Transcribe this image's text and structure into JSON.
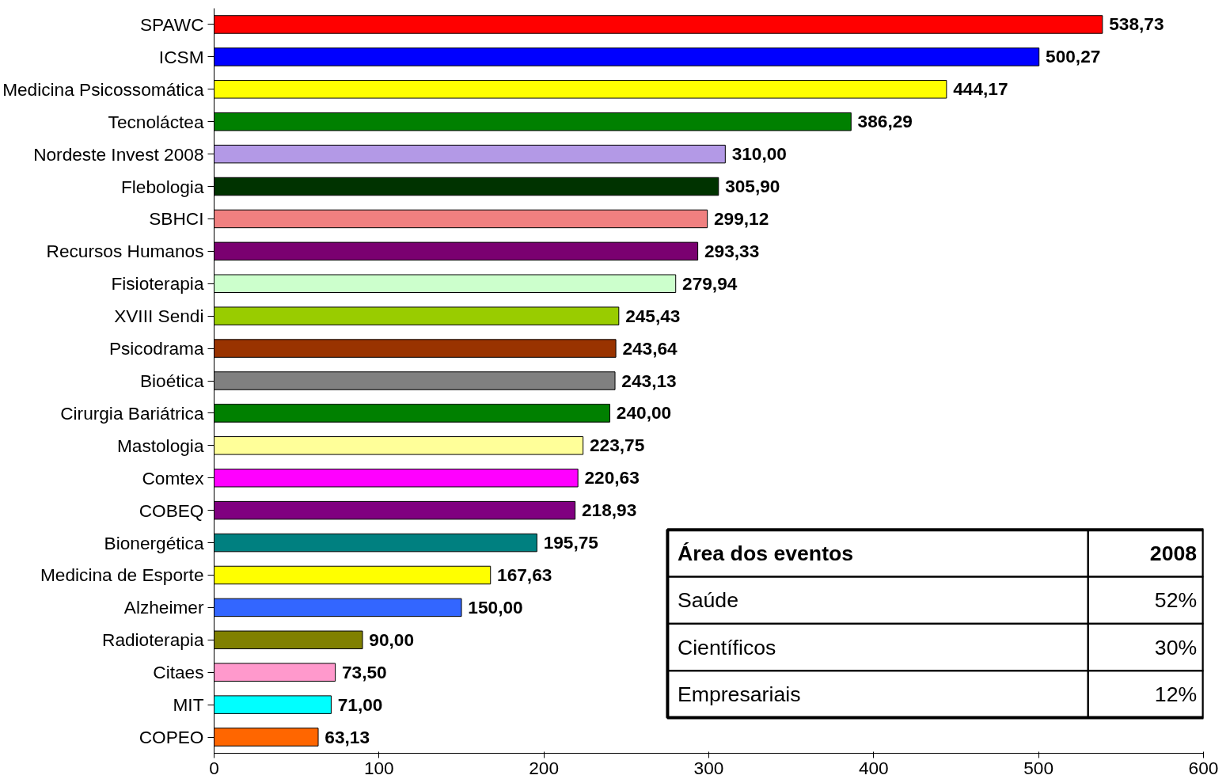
{
  "chart_data": {
    "type": "bar",
    "orientation": "horizontal",
    "categories": [
      "SPAWC",
      "ICSM",
      "Medicina Psicossomática",
      "Tecnoláctea",
      "Nordeste Invest 2008",
      "Flebologia",
      "SBHCI",
      "Recursos Humanos",
      "Fisioterapia",
      "XVIII Sendi",
      "Psicodrama",
      "Bioética",
      "Cirurgia Bariátrica",
      "Mastologia",
      "Comtex",
      "COBEQ",
      "Bionergética",
      "Medicina de Esporte",
      "Alzheimer",
      "Radioterapia",
      "Citaes",
      "MIT",
      "COPEO"
    ],
    "values": [
      538.73,
      500.27,
      444.17,
      386.29,
      310.0,
      305.9,
      299.12,
      293.33,
      279.94,
      245.43,
      243.64,
      243.13,
      240.0,
      223.75,
      220.63,
      218.93,
      195.75,
      167.63,
      150.0,
      90.0,
      73.5,
      71.0,
      63.13
    ],
    "value_labels": [
      "538,73",
      "500,27",
      "444,17",
      "386,29",
      "310,00",
      "305,90",
      "299,12",
      "293,33",
      "279,94",
      "245,43",
      "243,64",
      "243,13",
      "240,00",
      "223,75",
      "220,63",
      "218,93",
      "195,75",
      "167,63",
      "150,00",
      "90,00",
      "73,50",
      "71,00",
      "63,13"
    ],
    "colors": [
      "#ff0000",
      "#0000ff",
      "#ffff00",
      "#008000",
      "#b399e6",
      "#003300",
      "#f08080",
      "#7a0070",
      "#ccffcc",
      "#99cc00",
      "#993300",
      "#808080",
      "#008000",
      "#ffff99",
      "#ff00ff",
      "#800080",
      "#008080",
      "#ffff00",
      "#3366ff",
      "#808000",
      "#ff99cc",
      "#00ffff",
      "#ff6600"
    ],
    "xlim": [
      0,
      600
    ],
    "xticks": [
      0,
      100,
      200,
      300,
      400,
      500,
      600
    ],
    "grid": false,
    "annotations": [
      "Área dos eventos",
      "2008",
      "Saúde",
      "52%",
      "Científicos",
      "30%",
      "Empresariais",
      "12%"
    ]
  }
}
